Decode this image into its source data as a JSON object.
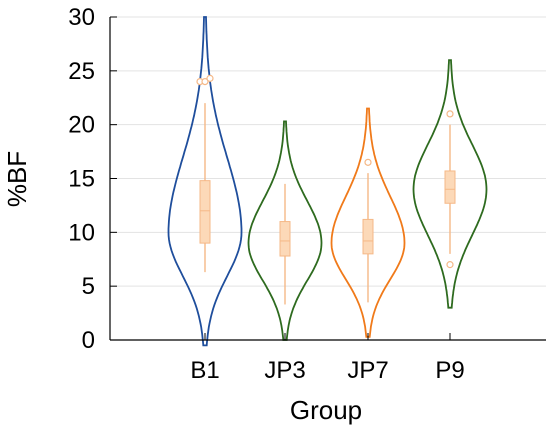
{
  "chart_data": {
    "type": "violin",
    "xlabel": "Group",
    "ylabel": "%BF",
    "ylim": [
      0,
      30
    ],
    "y_ticks": [
      0,
      5,
      10,
      15,
      20,
      25,
      30
    ],
    "grid": "horizontal",
    "categories": [
      "B1",
      "JP3",
      "JP7",
      "P9"
    ],
    "series": [
      {
        "category": "B1",
        "color": "#1f4e9c",
        "range": [
          -0.5,
          30
        ],
        "mode": 10.0,
        "q1": 9.0,
        "median": 12.0,
        "q3": 14.8,
        "whisker_low": 6.3,
        "whisker_high": 22.0,
        "outliers": [
          24.0,
          24.0,
          24.3
        ]
      },
      {
        "category": "JP3",
        "color": "#2e6b1f",
        "range": [
          0,
          20.3
        ],
        "mode": 9.0,
        "q1": 7.8,
        "median": 9.2,
        "q3": 11.0,
        "whisker_low": 3.3,
        "whisker_high": 14.5,
        "outliers": []
      },
      {
        "category": "JP7",
        "color": "#f07a1a",
        "range": [
          0.3,
          21.5
        ],
        "mode": 9.0,
        "q1": 8.0,
        "median": 9.2,
        "q3": 11.2,
        "whisker_low": 3.5,
        "whisker_high": 15.5,
        "outliers": [
          16.5
        ]
      },
      {
        "category": "P9",
        "color": "#2e6b1f",
        "range": [
          3,
          26
        ],
        "mode": 14.0,
        "q1": 12.7,
        "median": 14.0,
        "q3": 15.7,
        "whisker_low": 8.0,
        "whisker_high": 20.0,
        "outliers": [
          7.0,
          21.0
        ]
      }
    ],
    "box_color": "#fcd9b8",
    "box_edge_color": "#f5b887"
  }
}
